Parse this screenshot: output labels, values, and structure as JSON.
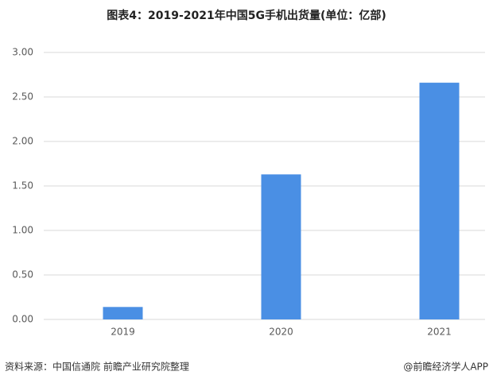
{
  "chart_data": {
    "type": "bar",
    "title": "图表4：2019-2021年中国5G手机出货量(单位：亿部)",
    "categories": [
      "2019",
      "2020",
      "2021"
    ],
    "values": [
      0.14,
      1.63,
      2.66
    ],
    "color": "#4a8fe4",
    "ylim": [
      0,
      3
    ],
    "yticks": [
      {
        "value": 0,
        "label": "0.00"
      },
      {
        "value": 0.5,
        "label": "0.50"
      },
      {
        "value": 1,
        "label": "1.00"
      },
      {
        "value": 1.5,
        "label": "1.50"
      },
      {
        "value": 2,
        "label": "2.00"
      },
      {
        "value": 2.5,
        "label": "2.50"
      },
      {
        "value": 3,
        "label": "3.00"
      }
    ],
    "grid": true,
    "source": "资料来源：中国信通院 前瞻产业研究院整理",
    "credit": "@前瞻经济学人APP"
  }
}
